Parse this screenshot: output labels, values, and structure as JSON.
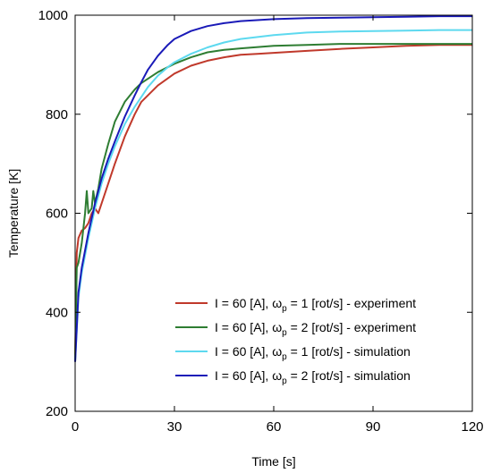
{
  "chart_data": {
    "type": "line",
    "xlabel": "Time [s]",
    "ylabel": "Temperature [K]",
    "xlim": [
      0,
      120
    ],
    "ylim": [
      200,
      1000
    ],
    "xticks": [
      0,
      30,
      60,
      90,
      120
    ],
    "yticks": [
      200,
      400,
      600,
      800,
      1000
    ],
    "grid": false,
    "legend_position": "bottom-right",
    "series": [
      {
        "name": "I = 60 [A], ωp = 1 [rot/s] - experiment",
        "legend": {
          "main": "I = 60 [A], ω",
          "sub": "p",
          "rest": " = 1 [rot/s] - experiment"
        },
        "color": "#c0392b",
        "x": [
          0,
          0.5,
          1,
          2,
          3,
          4,
          5,
          6,
          7,
          8,
          10,
          12,
          15,
          18,
          20,
          25,
          30,
          35,
          40,
          45,
          50,
          55,
          60,
          70,
          80,
          90,
          100,
          110,
          120
        ],
        "y": [
          300,
          520,
          550,
          565,
          570,
          580,
          600,
          610,
          600,
          620,
          660,
          700,
          755,
          800,
          825,
          858,
          882,
          898,
          908,
          915,
          920,
          922,
          924,
          928,
          932,
          935,
          938,
          940,
          940
        ]
      },
      {
        "name": "I = 60 [A], ωp = 2 [rot/s] - experiment",
        "legend": {
          "main": "I = 60 [A], ω",
          "sub": "p",
          "rest": " = 2 [rot/s] - experiment"
        },
        "color": "#2e7d32",
        "x": [
          0,
          0.5,
          1,
          2,
          3,
          3.5,
          4,
          5,
          5.5,
          6,
          7,
          8,
          10,
          12,
          15,
          18,
          20,
          25,
          30,
          35,
          40,
          45,
          50,
          60,
          70,
          80,
          90,
          100,
          110,
          120
        ],
        "y": [
          300,
          490,
          500,
          540,
          600,
          645,
          600,
          610,
          645,
          620,
          650,
          690,
          740,
          785,
          825,
          850,
          863,
          885,
          902,
          915,
          925,
          930,
          933,
          938,
          940,
          942,
          942,
          942,
          942,
          942
        ]
      },
      {
        "name": "I = 60 [A], ωp = 1 [rot/s] - simulation",
        "legend": {
          "main": "I = 60 [A], ω",
          "sub": "p",
          "rest": " = 1 [rot/s] - simulation"
        },
        "color": "#5dd9ef",
        "x": [
          0,
          1,
          2,
          4,
          6,
          8,
          10,
          12,
          15,
          18,
          20,
          22,
          25,
          28,
          30,
          35,
          40,
          45,
          50,
          60,
          70,
          80,
          90,
          100,
          110,
          120
        ],
        "y": [
          300,
          430,
          480,
          550,
          610,
          660,
          700,
          735,
          780,
          815,
          835,
          855,
          878,
          895,
          905,
          922,
          935,
          945,
          952,
          960,
          965,
          967,
          968,
          969,
          970,
          970
        ]
      },
      {
        "name": "I = 60 [A], ωp = 2 [rot/s] - simulation",
        "legend": {
          "main": "I = 60 [A], ω",
          "sub": "p",
          "rest": " = 2 [rot/s] - simulation"
        },
        "color": "#1a1ab8",
        "x": [
          0,
          1,
          2,
          4,
          6,
          8,
          10,
          12,
          15,
          18,
          20,
          22,
          25,
          28,
          30,
          35,
          40,
          45,
          50,
          60,
          70,
          80,
          90,
          100,
          110,
          120
        ],
        "y": [
          300,
          440,
          490,
          560,
          620,
          670,
          710,
          745,
          795,
          838,
          865,
          890,
          918,
          940,
          952,
          968,
          978,
          984,
          988,
          992,
          994,
          995,
          996,
          997,
          998,
          998
        ]
      }
    ]
  }
}
